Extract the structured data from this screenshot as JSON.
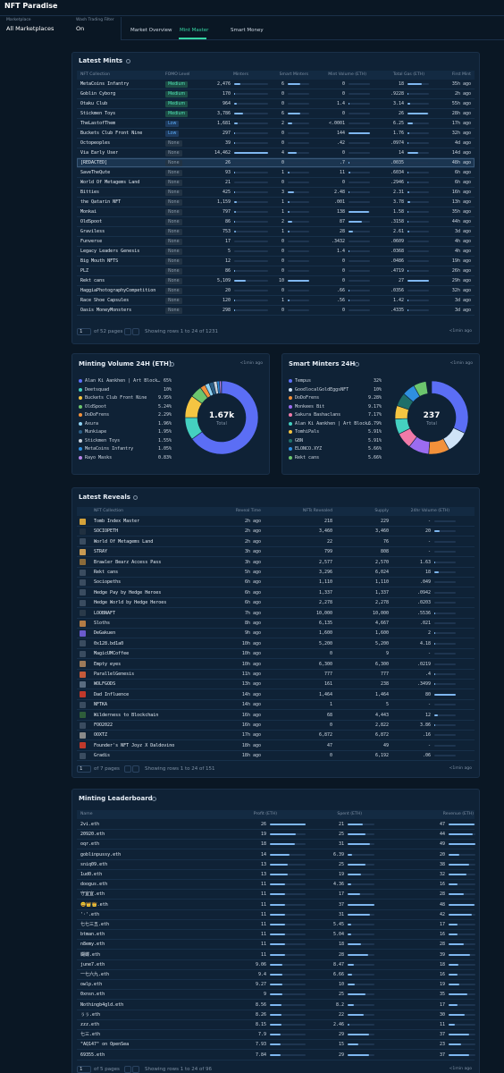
{
  "header": {
    "title": "NFT Paradise"
  },
  "filters": [
    {
      "label": "Marketplace",
      "value": "All Marketplaces"
    },
    {
      "label": "Wash Trading Filter",
      "value": "On"
    }
  ],
  "tabs": {
    "items": [
      "Market Overview",
      "Mint Master",
      "Smart Money"
    ],
    "active": 1
  },
  "latest_mints": {
    "title": "Latest Mints",
    "columns": [
      "NFT Collection",
      "FOMO Level",
      "Minters",
      "Smart Minters",
      "Mint Volume (ETH)",
      "Total Gas (ETH)",
      "First Mint"
    ],
    "rows": [
      [
        "MetaCoins Infantry",
        "Medium",
        "2,476",
        "6",
        "0",
        "18",
        "35h ago"
      ],
      [
        "Goblin Cyborg",
        "Medium",
        "170",
        "0",
        "0",
        ".9228",
        "2h ago"
      ],
      [
        "Otaku Club",
        "Medium",
        "964",
        "0",
        "1.4",
        "3.14",
        "55h ago"
      ],
      [
        "Stickmen Toys",
        "Medium",
        "3,786",
        "6",
        "0",
        "26",
        "28h ago"
      ],
      [
        "TheLastofThem",
        "Low",
        "1,681",
        "2",
        "<.0001",
        "6.25",
        "17h ago"
      ],
      [
        "Buckets Club Front Nine",
        "Low",
        "297",
        "0",
        "144",
        "1.76",
        "32h ago"
      ],
      [
        "Octopeoples",
        "None",
        "39",
        "0",
        ".42",
        ".0974",
        "4d ago"
      ],
      [
        "Via Early User",
        "None",
        "14,462",
        "4",
        "0",
        "14",
        "14d ago"
      ],
      [
        "[REDACTED]",
        "None",
        "26",
        "0",
        ".7",
        ".0035",
        "48h ago"
      ],
      [
        "SaveTheQute",
        "None",
        "93",
        "1",
        "11",
        ".6034",
        "6h ago"
      ],
      [
        "World Of Metagems Land",
        "None",
        "21",
        "0",
        "0",
        ".2946",
        "6h ago"
      ],
      [
        "Bitties",
        "None",
        "425",
        "3",
        "2.48",
        "2.31",
        "16h ago"
      ],
      [
        "the Qatarin NFT",
        "None",
        "1,159",
        "1",
        ".001",
        "3.78",
        "13h ago"
      ],
      [
        "Monkai",
        "None",
        "797",
        "1",
        "138",
        "1.58",
        "35h ago"
      ],
      [
        "OldSpoot",
        "None",
        "86",
        "2",
        "87",
        ".3158",
        "44h ago"
      ],
      [
        "Graviless",
        "None",
        "753",
        "1",
        "28",
        "2.61",
        "3d ago"
      ],
      [
        "Funverse",
        "None",
        "17",
        "0",
        ".3432",
        ".0609",
        "4h ago"
      ],
      [
        "Legacy Leaders Genesis",
        "None",
        "5",
        "0",
        "1.4",
        ".0368",
        "4h ago"
      ],
      [
        "Big Mouth NFTS",
        "None",
        "12",
        "0",
        "0",
        ".0486",
        "19h ago"
      ],
      [
        "PLZ",
        "None",
        "86",
        "0",
        "0",
        ".4719",
        "26h ago"
      ],
      [
        "Rekt cans",
        "None",
        "5,109",
        "10",
        "0",
        "27",
        "29h ago"
      ],
      [
        "HaggiaPhotographyCompetition",
        "None",
        "20",
        "0",
        ".66",
        ".0356",
        "32h ago"
      ],
      [
        "Race Shoe Capsules",
        "None",
        "120",
        "1",
        ".56",
        "1.42",
        "3d ago"
      ],
      [
        "Oasis MoneyMonsters",
        "None",
        "298",
        "0",
        "0",
        ".4335",
        "3d ago"
      ]
    ],
    "pagination": {
      "page": "1",
      "pages": "of 52 pages",
      "showing": "Showing rows 1 to 24 of 1231",
      "updated": "<1min ago"
    }
  },
  "minting_volume": {
    "type": "pie",
    "title": "Minting Volume 24H (ETH)",
    "updated": "<1min ago",
    "total": "1.67k",
    "total_label": "Total",
    "series": [
      {
        "name": "Alan Ki Aankhen | Art Blocks Factory",
        "color": "#5b6ef5",
        "value": 65,
        "value_label": "65%"
      },
      {
        "name": "Deetsquad",
        "color": "#45d0c0",
        "value": 10,
        "value_label": "10%"
      },
      {
        "name": "Buckets Club Front Nine",
        "color": "#f5c542",
        "value": 9.95,
        "value_label": "9.95%"
      },
      {
        "name": "OldSpoot",
        "color": "#6cc56e",
        "value": 5.24,
        "value_label": "5.24%"
      },
      {
        "name": "DoDoFrens",
        "color": "#f2913a",
        "value": 2.29,
        "value_label": "2.29%"
      },
      {
        "name": "Axura",
        "color": "#8fd3f4",
        "value": 1.96,
        "value_label": "1.96%"
      },
      {
        "name": "Munkiape",
        "color": "#2d5f86",
        "value": 1.95,
        "value_label": "1.95%"
      },
      {
        "name": "Stickmen Toys",
        "color": "#c9d2dc",
        "value": 1.55,
        "value_label": "1.55%"
      },
      {
        "name": "MetaCoins Infantry",
        "color": "#2f8fe0",
        "value": 1.05,
        "value_label": "1.05%"
      },
      {
        "name": "Rayo Masks",
        "color": "#b784e8",
        "value": 0.83,
        "value_label": "0.83%"
      }
    ]
  },
  "smart_minters": {
    "type": "pie",
    "title": "Smart Minters 24H",
    "updated": "<1min ago",
    "total": "237",
    "total_label": "Total",
    "series": [
      {
        "name": "Tempus",
        "color": "#5b6ef5",
        "value": 32,
        "value_label": "32%"
      },
      {
        "name": "GoodlocalGoldEggsNFT",
        "color": "#cfe3f7",
        "value": 10,
        "value_label": "10%"
      },
      {
        "name": "DoDoFrens",
        "color": "#f2913a",
        "value": 9.28,
        "value_label": "9.28%"
      },
      {
        "name": "Monkees Bit",
        "color": "#9b6cf0",
        "value": 9.17,
        "value_label": "9.17%"
      },
      {
        "name": "Sakura Bashaclans",
        "color": "#f07aa8",
        "value": 7.17,
        "value_label": "7.17%"
      },
      {
        "name": "Alan Ki Aankhen | Art Blocks Factory",
        "color": "#45d0c0",
        "value": 6.79,
        "value_label": "6.79%"
      },
      {
        "name": "TomhiPals",
        "color": "#f5c542",
        "value": 5.91,
        "value_label": "5.91%"
      },
      {
        "name": "GBN",
        "color": "#1f6f6a",
        "value": 5.91,
        "value_label": "5.91%"
      },
      {
        "name": "ELONCO.XYZ",
        "color": "#2f8fe0",
        "value": 5.66,
        "value_label": "5.66%"
      },
      {
        "name": "Rekt cans",
        "color": "#6cc56e",
        "value": 5.66,
        "value_label": "5.66%"
      }
    ]
  },
  "latest_reveals": {
    "title": "Latest Reveals",
    "columns": [
      "NFT Collection",
      "Reveal Time",
      "NFTs Revealed",
      "Supply",
      "24hr Volume (ETH)"
    ],
    "rows": [
      [
        "Tomb Index Master",
        "2h ago",
        "218",
        "229",
        "-"
      ],
      [
        "SOCIOPETH",
        "2h ago",
        "3,460",
        "3,460",
        "20"
      ],
      [
        "World Of Metagems Land",
        "2h ago",
        "22",
        "76",
        "-"
      ],
      [
        "STRAY",
        "3h ago",
        "799",
        "808",
        "-"
      ],
      [
        "Brawler Bearz Access Pass",
        "3h ago",
        "2,577",
        "2,570",
        "1.63"
      ],
      [
        "Rekt cans",
        "5h ago",
        "3,296",
        "6,024",
        "18"
      ],
      [
        "Sociopeths",
        "6h ago",
        "1,110",
        "1,110",
        ".049"
      ],
      [
        "Hedge Pay by Hedge Heroes",
        "6h ago",
        "1,337",
        "1,337",
        ".0942"
      ],
      [
        "Hedge World by Hedge Heroes",
        "6h ago",
        "2,278",
        "2,278",
        ".0203"
      ],
      [
        "LOOBNAFT",
        "7h ago",
        "10,000",
        "10,000",
        ".5536"
      ],
      [
        "Sloths",
        "8h ago",
        "6,135",
        "4,667",
        ".021"
      ],
      [
        "DeGakuen",
        "9h ago",
        "1,600",
        "1,600",
        "2"
      ],
      [
        "0x128.bd1a0",
        "10h ago",
        "5,200",
        "5,200",
        "4.18"
      ],
      [
        "MagicUMCoffee",
        "10h ago",
        "0",
        "9",
        "-"
      ],
      [
        "Empty eyes",
        "10h ago",
        "6,300",
        "6,300",
        ".0219"
      ],
      [
        "ParallelGenesis",
        "11h ago",
        "777",
        "777",
        ".4"
      ],
      [
        "WOLFGODS",
        "13h ago",
        "161",
        "238",
        ".3499"
      ],
      [
        "Dad Influence",
        "14h ago",
        "1,464",
        "1,464",
        "80"
      ],
      [
        "NFTKA",
        "14h ago",
        "1",
        "5",
        "-"
      ],
      [
        "Wilderness to Blockchain",
        "16h ago",
        "68",
        "4,443",
        "12"
      ],
      [
        "FOO2022",
        "16h ago",
        "0",
        "2,822",
        "3.86"
      ],
      [
        "OOXTZ",
        "17h ago",
        "6,872",
        "6,872",
        ".16"
      ],
      [
        "Founder's NFT Joyz X Daldovino",
        "18h ago",
        "47",
        "49",
        "-"
      ],
      [
        "Gradis",
        "18h ago",
        "0",
        "6,192",
        ".06"
      ]
    ],
    "pagination": {
      "page": "1",
      "pages": "of 7 pages",
      "showing": "Showing rows 1 to 24 of 151",
      "updated": "<1min ago"
    }
  },
  "leaderboard": {
    "title": "Minting Leaderboard",
    "columns": [
      "Name",
      "Profit (ETH)",
      "Spent (ETH)",
      "Revenue (ETH)"
    ],
    "rows": [
      [
        "2vi.eth",
        "26",
        "21",
        "47"
      ],
      [
        "20920.eth",
        "19",
        "25",
        "44"
      ],
      [
        "oqr.eth",
        "18",
        "31",
        "49"
      ],
      [
        "goblinpussy.eth",
        "14",
        "6.39",
        "20"
      ],
      [
        "sniq09.eth",
        "13",
        "25",
        "38"
      ],
      [
        "1ud0.eth",
        "13",
        "19",
        "32"
      ],
      [
        "doogus.eth",
        "11",
        "4.36",
        "16"
      ],
      [
        "守宜宜.eth",
        "11",
        "17",
        "28"
      ],
      [
        "😀👑👑.eth",
        "11",
        "37",
        "48"
      ],
      [
        "'·'.eth",
        "11",
        "31",
        "42"
      ],
      [
        "七七三五.eth",
        "11",
        "5.45",
        "17"
      ],
      [
        "btman.eth",
        "11",
        "5.04",
        "16"
      ],
      [
        "n8emy.eth",
        "11",
        "18",
        "28"
      ],
      [
        "蝴蝶.eth",
        "11",
        "28",
        "39"
      ],
      [
        "june7.eth",
        "9.06",
        "8.47",
        "18"
      ],
      [
        "一七六九.eth",
        "9.4",
        "6.66",
        "16"
      ],
      [
        "owlp.eth",
        "9.27",
        "10",
        "19"
      ],
      [
        "0xnsn.eth",
        "9",
        "25",
        "35"
      ],
      [
        "Nothingb4gld.eth",
        "8.56",
        "8.2",
        "17"
      ],
      [
        "ぅぅ.eth",
        "8.26",
        "22",
        "30"
      ],
      [
        "zzz.eth",
        "8.15",
        "2.46",
        "11"
      ],
      [
        "七三.eth",
        "7.9",
        "29",
        "37"
      ],
      [
        "\"AQ147\" on OpenSea",
        "7.93",
        "15",
        "23"
      ],
      [
        "69355.eth",
        "7.84",
        "29",
        "37"
      ]
    ],
    "pagination": {
      "page": "1",
      "pages": "of 5 pages",
      "showing": "Showing rows 1 to 24 of 96",
      "updated": "<1min ago"
    }
  }
}
